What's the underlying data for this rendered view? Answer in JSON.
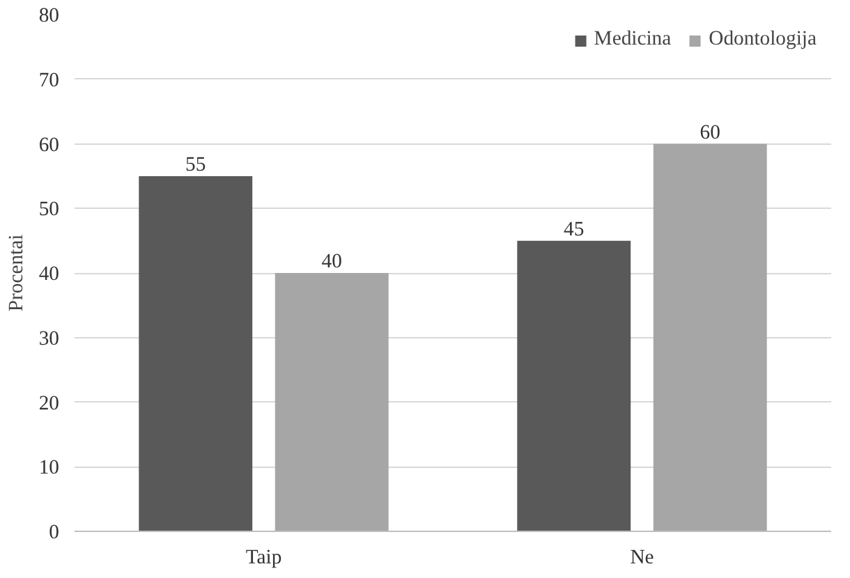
{
  "chart_data": {
    "type": "bar",
    "ylabel": "Procentai",
    "categories": [
      "Taip",
      "Ne"
    ],
    "series": [
      {
        "name": "Medicina",
        "color": "#595959",
        "values": [
          55,
          45
        ]
      },
      {
        "name": "Odontologija",
        "color": "#a6a6a6",
        "values": [
          40,
          60
        ]
      }
    ],
    "ylim": [
      0,
      80
    ],
    "yticks": [
      0,
      10,
      20,
      30,
      40,
      50,
      60,
      70,
      80
    ],
    "grid": "y",
    "legend": "top right",
    "data_labels": true
  }
}
